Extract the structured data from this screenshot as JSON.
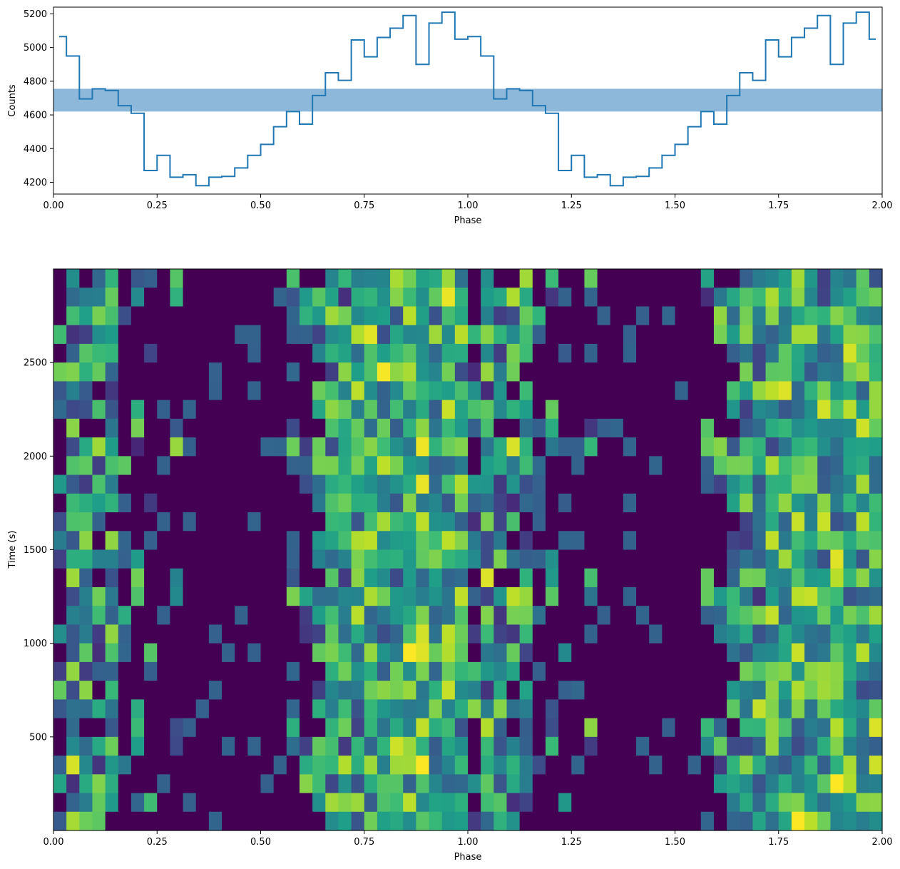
{
  "chart_data": [
    {
      "type": "line",
      "drawstyle": "steps",
      "xlabel": "Phase",
      "ylabel": "Counts",
      "xlim": [
        0.0,
        2.0
      ],
      "ylim": [
        4130,
        5240
      ],
      "xticks": [
        "0.00",
        "0.25",
        "0.50",
        "0.75",
        "1.00",
        "1.25",
        "1.50",
        "1.75",
        "2.00"
      ],
      "yticks": [
        "4200",
        "4400",
        "4600",
        "4800",
        "5000",
        "5200"
      ],
      "bin_width": 0.03125,
      "values": [
        5065,
        4950,
        4695,
        4755,
        4745,
        4655,
        4610,
        4270,
        4360,
        4230,
        4245,
        4180,
        4230,
        4235,
        4285,
        4360,
        4425,
        4530,
        4620,
        4545,
        4715,
        4850,
        4805,
        5045,
        4945,
        5060,
        5115,
        5190,
        4900,
        5145,
        5210,
        5050,
        5065,
        4950,
        4695,
        4755,
        4745,
        4655,
        4610,
        4270,
        4360,
        4230,
        4245,
        4180,
        4230,
        4235,
        4285,
        4360,
        4425,
        4530,
        4620,
        4545,
        4715,
        4850,
        4805,
        5045,
        4945,
        5060,
        5115,
        5190,
        4900,
        5145,
        5210,
        5050
      ],
      "band": {
        "ymin": 4620,
        "ymax": 4755
      },
      "colors": {
        "line": "#1f77b4",
        "band": "#8db8d9"
      }
    },
    {
      "type": "heatmap",
      "colormap": "viridis",
      "xlabel": "Phase",
      "ylabel": "Time (s)",
      "xlim": [
        0.0,
        2.0
      ],
      "ylim": [
        0,
        3000
      ],
      "xticks": [
        "0.00",
        "0.25",
        "0.50",
        "0.75",
        "1.00",
        "1.25",
        "1.50",
        "1.75",
        "2.00"
      ],
      "yticks": [
        "500",
        "1000",
        "1500",
        "2000",
        "2500"
      ],
      "n_phase_bins": 64,
      "n_time_bins": 30,
      "profile_rows": [
        [
          0.05,
          0.55,
          0.15,
          0.1,
          0.35,
          0.05,
          0.3,
          0.0,
          0.0,
          0.3,
          0.0,
          0.0,
          0.0,
          0.0,
          0.0,
          0.0,
          0.1,
          0.15,
          0.2,
          0.0,
          0.0,
          0.25,
          0.3,
          0.35,
          0.5,
          0.4,
          0.45,
          0.35,
          0.55,
          0.6,
          0.55,
          0.5
        ],
        [
          0.1,
          0.3,
          0.25,
          0.55,
          0.4,
          0.05,
          0.2,
          0.0,
          0.15,
          0.3,
          0.0,
          0.0,
          0.05,
          0.0,
          0.0,
          0.0,
          0.05,
          0.1,
          0.25,
          0.35,
          0.2,
          0.3,
          0.25,
          0.35,
          0.4,
          0.45,
          0.5,
          0.4,
          0.6,
          0.4,
          0.55,
          0.6
        ],
        [
          0.0,
          0.7,
          0.2,
          0.3,
          0.45,
          0.3,
          0.0,
          0.0,
          0.05,
          0.0,
          0.1,
          0.0,
          0.0,
          0.0,
          0.0,
          0.0,
          0.0,
          0.1,
          0.0,
          0.3,
          0.35,
          0.55,
          0.45,
          0.5,
          0.4,
          0.45,
          0.35,
          0.55,
          0.65,
          0.5,
          0.55,
          0.65
        ],
        [
          0.3,
          0.25,
          0.2,
          0.3,
          0.45,
          0.05,
          0.0,
          0.0,
          0.0,
          0.0,
          0.0,
          0.0,
          0.05,
          0.0,
          0.0,
          0.0,
          0.0,
          0.05,
          0.1,
          0.25,
          0.35,
          0.4,
          0.5,
          0.45,
          0.55,
          0.45,
          0.6,
          0.4,
          0.7,
          0.45,
          0.55,
          0.45
        ],
        [
          0.1,
          0.35,
          0.3,
          0.2,
          0.25,
          0.0,
          0.0,
          0.3,
          0.0,
          0.0,
          0.0,
          0.0,
          0.0,
          0.0,
          0.0,
          0.0,
          0.05,
          0.0,
          0.05,
          0.0,
          0.2,
          0.4,
          0.35,
          0.55,
          0.3,
          0.5,
          0.45,
          0.6,
          0.55,
          0.5,
          0.4,
          0.45
        ],
        [
          0.2,
          0.5,
          0.25,
          0.35,
          0.1,
          0.05,
          0.0,
          0.0,
          0.0,
          0.05,
          0.0,
          0.0,
          0.0,
          0.05,
          0.0,
          0.0,
          0.0,
          0.0,
          0.05,
          0.0,
          0.15,
          0.3,
          0.35,
          0.5,
          0.55,
          0.6,
          0.55,
          0.65,
          0.5,
          0.6,
          0.55,
          0.4
        ],
        [
          0.25,
          0.2,
          0.25,
          0.1,
          0.3,
          0.0,
          0.05,
          0.0,
          0.0,
          0.0,
          0.0,
          0.0,
          0.0,
          0.05,
          0.0,
          0.0,
          0.0,
          0.0,
          0.05,
          0.1,
          0.25,
          0.3,
          0.4,
          0.45,
          0.55,
          0.5,
          0.45,
          0.6,
          0.65,
          0.55,
          0.45,
          0.5
        ],
        [
          0.3,
          0.35,
          0.3,
          0.25,
          0.3,
          0.1,
          0.2,
          0.05,
          0.0,
          0.0,
          0.05,
          0.0,
          0.0,
          0.0,
          0.0,
          0.0,
          0.0,
          0.0,
          0.0,
          0.15,
          0.2,
          0.35,
          0.45,
          0.4,
          0.45,
          0.5,
          0.55,
          0.5,
          0.6,
          0.55,
          0.5,
          0.45
        ]
      ],
      "colors": {
        "low": "#440154",
        "high": "#fde725"
      }
    }
  ]
}
